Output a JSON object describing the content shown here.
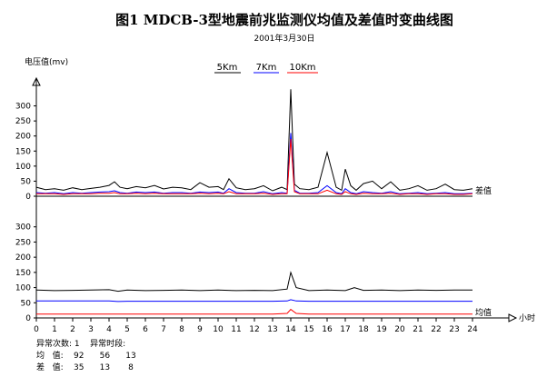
{
  "chart_data": {
    "type": "line",
    "title": "图1   MDCB-3型地震前兆监测仪均值及差值时变曲线图",
    "subtitle": "2001年3月30日",
    "ylabel": "电压值(mv)",
    "xlabel": "小时",
    "legend": [
      "5Km",
      "7Km",
      "10Km"
    ],
    "legend_colors": [
      "#000000",
      "#0000ff",
      "#ff0000"
    ],
    "xlim": [
      0,
      24
    ],
    "x_ticks": [
      0,
      1,
      2,
      3,
      4,
      5,
      6,
      7,
      8,
      9,
      10,
      11,
      12,
      13,
      14,
      15,
      16,
      17,
      18,
      19,
      20,
      21,
      22,
      23,
      24
    ],
    "panels": [
      {
        "name": "差值",
        "ylim": [
          0,
          350
        ],
        "y_ticks": [
          0,
          50,
          100,
          150,
          200,
          250,
          300
        ],
        "x": [
          0,
          0.5,
          1,
          1.5,
          2,
          2.5,
          3,
          3.5,
          4,
          4.3,
          4.6,
          5,
          5.5,
          6,
          6.5,
          7,
          7.5,
          8,
          8.5,
          9,
          9.5,
          10,
          10.3,
          10.6,
          11,
          11.5,
          12,
          12.5,
          13,
          13.5,
          13.8,
          14,
          14.2,
          14.5,
          15,
          15.5,
          16,
          16.5,
          16.8,
          17,
          17.3,
          17.6,
          18,
          18.5,
          19,
          19.5,
          20,
          20.5,
          21,
          21.5,
          22,
          22.5,
          23,
          23.5,
          24
        ],
        "series": [
          {
            "values": [
              30,
              22,
              25,
              20,
              28,
              22,
              26,
              30,
              36,
              48,
              30,
              25,
              32,
              28,
              36,
              24,
              30,
              28,
              22,
              45,
              30,
              32,
              22,
              58,
              28,
              22,
              25,
              35,
              18,
              30,
              22,
              355,
              40,
              25,
              22,
              30,
              145,
              30,
              20,
              90,
              35,
              20,
              42,
              50,
              25,
              48,
              20,
              25,
              35,
              20,
              25,
              40,
              22,
              20,
              25
            ]
          },
          {
            "values": [
              12,
              10,
              12,
              8,
              12,
              10,
              12,
              14,
              15,
              18,
              12,
              10,
              14,
              12,
              14,
              10,
              12,
              12,
              10,
              14,
              12,
              14,
              10,
              25,
              12,
              10,
              10,
              15,
              8,
              12,
              10,
              210,
              20,
              10,
              10,
              12,
              35,
              12,
              8,
              25,
              12,
              8,
              15,
              12,
              10,
              15,
              8,
              10,
              12,
              8,
              10,
              12,
              8,
              8,
              10
            ]
          },
          {
            "values": [
              8,
              8,
              8,
              6,
              8,
              8,
              8,
              10,
              10,
              12,
              8,
              8,
              10,
              8,
              10,
              8,
              8,
              8,
              8,
              10,
              8,
              10,
              8,
              15,
              8,
              8,
              8,
              10,
              6,
              8,
              8,
              190,
              15,
              8,
              8,
              8,
              20,
              8,
              6,
              15,
              8,
              6,
              10,
              8,
              8,
              10,
              6,
              8,
              8,
              6,
              8,
              8,
              6,
              6,
              8
            ]
          }
        ]
      },
      {
        "name": "均值",
        "ylim": [
          0,
          350
        ],
        "y_ticks": [
          0,
          50,
          100,
          150,
          200,
          250,
          300
        ],
        "x": [
          0,
          1,
          2,
          3,
          4,
          4.5,
          5,
          6,
          7,
          8,
          9,
          10,
          11,
          12,
          13,
          13.8,
          14,
          14.3,
          15,
          16,
          17,
          17.5,
          18,
          19,
          20,
          21,
          22,
          23,
          24
        ],
        "series": [
          {
            "values": [
              92,
              90,
              91,
              92,
              93,
              88,
              92,
              90,
              91,
              92,
              90,
              92,
              90,
              91,
              90,
              95,
              150,
              100,
              90,
              92,
              90,
              100,
              91,
              92,
              90,
              92,
              91,
              92,
              92
            ]
          },
          {
            "values": [
              56,
              56,
              56,
              56,
              56,
              54,
              55,
              55,
              55,
              55,
              55,
              55,
              55,
              55,
              55,
              56,
              60,
              56,
              55,
              55,
              55,
              55,
              55,
              55,
              55,
              55,
              55,
              55,
              55
            ]
          },
          {
            "values": [
              13,
              13,
              13,
              13,
              13,
              13,
              13,
              13,
              13,
              13,
              13,
              13,
              13,
              13,
              13,
              15,
              28,
              15,
              13,
              13,
              13,
              13,
              13,
              13,
              13,
              13,
              13,
              13,
              13
            ]
          }
        ]
      }
    ]
  },
  "stats": {
    "line1": "异常次数: 1    异常时段:",
    "line2": "均   值:    92      56      13",
    "line3": "差   值:    35      13       8"
  }
}
